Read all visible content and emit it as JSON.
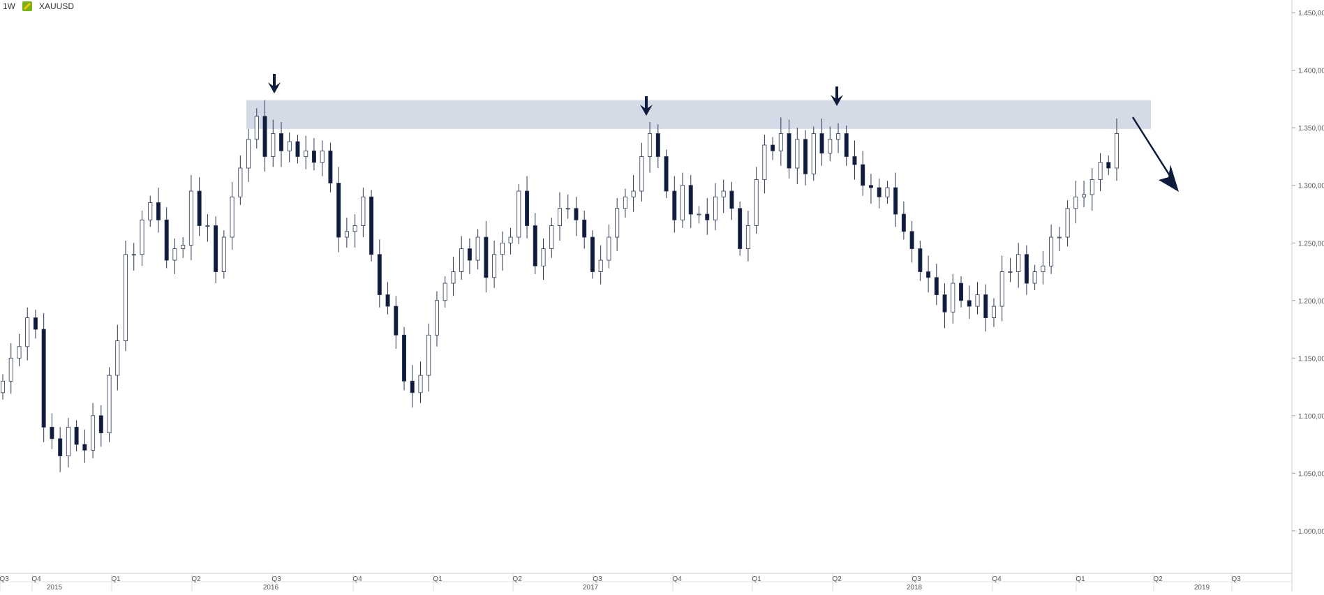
{
  "header": {
    "timeframe": "1W",
    "symbol": "XAUUSD"
  },
  "colors": {
    "bull_body": "#ffffff",
    "bear_body": "#0f1b3d",
    "wick": "#2a3550",
    "zone_fill": "#d5dbe6",
    "arrow": "#0f1b3d",
    "axis_text": "#555555"
  },
  "chart_data": {
    "type": "candlestick",
    "timeframe": "1W",
    "symbol": "XAUUSD",
    "y_ticks": [
      "1.450,00",
      "1.400,00",
      "1.350,00",
      "1.300,00",
      "1.250,00",
      "1.200,00",
      "1.150,00",
      "1.100,00",
      "1.050,00",
      "1.000,00"
    ],
    "y_tick_values": [
      1450,
      1400,
      1350,
      1300,
      1250,
      1200,
      1150,
      1100,
      1050,
      1000
    ],
    "ylim": [
      963,
      1461
    ],
    "quarter_labels": [
      "Q3",
      "Q4",
      "Q1",
      "Q2",
      "Q3",
      "Q4",
      "Q1",
      "Q2",
      "Q3",
      "Q4",
      "Q1",
      "Q2",
      "Q3",
      "Q4",
      "Q1",
      "Q2",
      "Q3"
    ],
    "year_labels": [
      "2015",
      "2016",
      "2017",
      "2018",
      "2019"
    ],
    "resistance_zone": [
      1349,
      1374
    ],
    "annotations": [
      "arrow-down over 2016 high",
      "arrow-down over 2017 Q3 high",
      "arrow-down over 2018 Q2 high",
      "projected decline arrow"
    ],
    "close_path": [
      1130,
      1150,
      1160,
      1185,
      1175,
      1090,
      1080,
      1065,
      1090,
      1075,
      1070,
      1100,
      1085,
      1135,
      1165,
      1240,
      1240,
      1270,
      1285,
      1270,
      1235,
      1245,
      1248,
      1295,
      1265,
      1265,
      1225,
      1255,
      1290,
      1315,
      1340,
      1360,
      1325,
      1345,
      1330,
      1338,
      1325,
      1330,
      1320,
      1330,
      1302,
      1255,
      1260,
      1265,
      1290,
      1240,
      1205,
      1195,
      1170,
      1130,
      1120,
      1135,
      1170,
      1200,
      1215,
      1225,
      1245,
      1235,
      1255,
      1220,
      1240,
      1250,
      1255,
      1295,
      1265,
      1230,
      1245,
      1265,
      1280,
      1280,
      1270,
      1255,
      1225,
      1235,
      1255,
      1280,
      1290,
      1295,
      1325,
      1345,
      1325,
      1295,
      1270,
      1300,
      1275,
      1275,
      1270,
      1290,
      1295,
      1280,
      1245,
      1265,
      1305,
      1335,
      1330,
      1345,
      1315,
      1340,
      1310,
      1345,
      1328,
      1340,
      1345,
      1325,
      1318,
      1300,
      1298,
      1290,
      1298,
      1275,
      1260,
      1245,
      1225,
      1220,
      1205,
      1190,
      1215,
      1200,
      1195,
      1205,
      1185,
      1195,
      1225,
      1225,
      1240,
      1215,
      1225,
      1230,
      1255,
      1255,
      1280,
      1290,
      1292,
      1305,
      1320,
      1315,
      1345
    ]
  }
}
